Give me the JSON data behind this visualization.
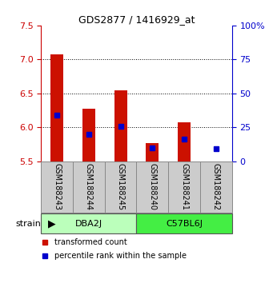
{
  "title": "GDS2877 / 1416929_at",
  "samples": [
    "GSM188243",
    "GSM188244",
    "GSM188245",
    "GSM188240",
    "GSM188241",
    "GSM188242"
  ],
  "red_values": [
    7.08,
    6.27,
    6.55,
    5.77,
    6.08,
    5.5
  ],
  "blue_values": [
    6.18,
    5.9,
    6.01,
    5.7,
    5.83,
    5.69
  ],
  "ylim": [
    5.5,
    7.5
  ],
  "yticks_left": [
    5.5,
    6.0,
    6.5,
    7.0,
    7.5
  ],
  "yticks_right": [
    0,
    25,
    50,
    75,
    100
  ],
  "ytick_labels_right": [
    "0",
    "25",
    "50",
    "75",
    "100%"
  ],
  "groups": [
    {
      "label": "DBA2J",
      "indices": [
        0,
        1,
        2
      ],
      "color": "#bbffbb"
    },
    {
      "label": "C57BL6J",
      "indices": [
        3,
        4,
        5
      ],
      "color": "#44ee44"
    }
  ],
  "strain_label": "strain",
  "bar_color": "#cc1100",
  "marker_color": "#0000cc",
  "bar_width": 0.4,
  "base_value": 5.5,
  "axis_left_color": "#cc0000",
  "axis_right_color": "#0000cc",
  "bg_color": "#ffffff",
  "label_area_color": "#cccccc",
  "grid_yticks": [
    6.0,
    6.5,
    7.0
  ]
}
